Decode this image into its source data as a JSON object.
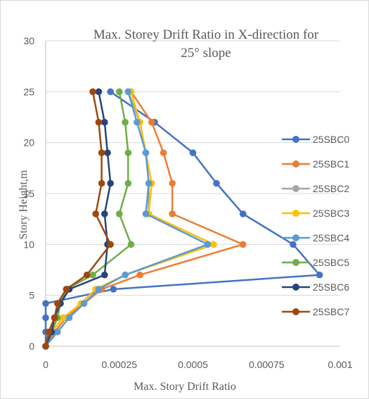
{
  "chart_data": {
    "type": "scatter",
    "title": "Max. Storey Drift Ratio in X-direction for 25°  slope",
    "title_lines": [
      "Max. Storey Drift Ratio in X-direction for",
      "25°  slope"
    ],
    "xlabel": "Max. Story Drift Ratio",
    "ylabel": "Story Height,m",
    "xlim": [
      0,
      0.001
    ],
    "ylim": [
      0,
      30
    ],
    "x_ticks": [
      0,
      0.00025,
      0.0005,
      0.00075,
      0.001
    ],
    "x_tick_labels": [
      "0",
      "0.00025",
      "0.0005",
      "0.00075",
      "0.001"
    ],
    "y_ticks": [
      0,
      5,
      10,
      15,
      20,
      25,
      30
    ],
    "y_tick_labels": [
      "0",
      "5",
      "10",
      "15",
      "20",
      "25",
      "30"
    ],
    "grid": "horizontal",
    "legend_position": "right",
    "series": [
      {
        "name": "25SBC0",
        "color": "#4472c4",
        "x": [
          0,
          0,
          0,
          0,
          0.00023,
          0.00093,
          0.00084,
          0.00067,
          0.00058,
          0.0005,
          0.00037,
          0.00022
        ],
        "y": [
          0,
          1.4,
          2.8,
          4.2,
          5.6,
          7.0,
          10.0,
          13.0,
          16.0,
          19.0,
          22.0,
          25.0
        ]
      },
      {
        "name": "25SBC1",
        "color": "#ed7d31",
        "x": [
          0,
          3e-05,
          7e-05,
          0.00013,
          0.00019,
          0.00032,
          0.00067,
          0.00043,
          0.00043,
          0.0004,
          0.00036,
          0.00029
        ],
        "y": [
          0,
          1.4,
          2.8,
          4.2,
          5.6,
          7.0,
          10.0,
          13.0,
          16.0,
          19.0,
          22.0,
          25.0
        ]
      },
      {
        "name": "25SBC2",
        "color": "#a5a5a5",
        "x": [
          0,
          2e-05,
          6e-05,
          0.00012,
          0.00017,
          0.00027,
          0.00057,
          0.00035,
          0.00035,
          0.00034,
          0.00032,
          0.00028
        ],
        "y": [
          0,
          1.4,
          2.8,
          4.2,
          5.6,
          7.0,
          10.0,
          13.0,
          16.0,
          19.0,
          22.0,
          25.0
        ]
      },
      {
        "name": "25SBC3",
        "color": "#ffc000",
        "x": [
          0,
          2e-05,
          6e-05,
          0.00012,
          0.00017,
          0.00027,
          0.00057,
          0.00035,
          0.00036,
          0.00034,
          0.00032,
          0.00029
        ],
        "y": [
          0,
          1.4,
          2.8,
          4.2,
          5.6,
          7.0,
          10.0,
          13.0,
          16.0,
          19.0,
          22.0,
          25.0
        ]
      },
      {
        "name": "25SBC4",
        "color": "#5b9bd5",
        "x": [
          0,
          4e-05,
          8e-05,
          0.00013,
          0.00018,
          0.00027,
          0.00055,
          0.00034,
          0.00035,
          0.00034,
          0.00031,
          0.00028
        ],
        "y": [
          0,
          1.4,
          2.8,
          4.2,
          5.6,
          7.0,
          10.0,
          13.0,
          16.0,
          19.0,
          22.0,
          25.0
        ]
      },
      {
        "name": "25SBC5",
        "color": "#70ad47",
        "x": [
          0,
          2e-05,
          4e-05,
          5e-05,
          7e-05,
          0.00016,
          0.00029,
          0.00025,
          0.00028,
          0.00028,
          0.00027,
          0.00025
        ],
        "y": [
          0,
          1.4,
          2.8,
          4.2,
          5.6,
          7.0,
          10.0,
          13.0,
          16.0,
          19.0,
          22.0,
          25.0
        ]
      },
      {
        "name": "25SBC6",
        "color": "#264478",
        "x": [
          0,
          2e-05,
          3e-05,
          5e-05,
          8e-05,
          0.0002,
          0.00021,
          0.0002,
          0.00022,
          0.00021,
          0.0002,
          0.00018
        ],
        "y": [
          0,
          1.4,
          2.8,
          4.2,
          5.6,
          7.0,
          10.0,
          13.0,
          16.0,
          19.0,
          22.0,
          25.0
        ]
      },
      {
        "name": "25SBC7",
        "color": "#9e480e",
        "x": [
          0,
          1e-05,
          3e-05,
          4e-05,
          7e-05,
          0.00014,
          0.00022,
          0.00017,
          0.00019,
          0.00019,
          0.00018,
          0.00016
        ],
        "y": [
          0,
          1.4,
          2.8,
          4.2,
          5.6,
          7.0,
          10.0,
          13.0,
          16.0,
          19.0,
          22.0,
          25.0
        ]
      }
    ]
  }
}
